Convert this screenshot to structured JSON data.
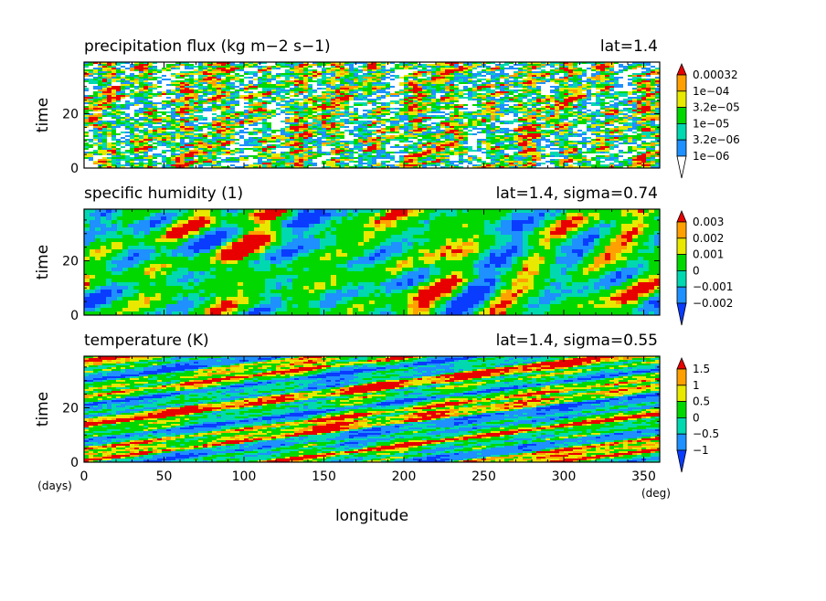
{
  "figure": {
    "xlabel": "longitude",
    "x_unit": "(deg)",
    "y_unit": "(days)"
  },
  "chart_data": [
    {
      "type": "heatmap",
      "title": "precipitation flux (kg m−2 s−1)",
      "annotation": "lat=1.4",
      "xlabel": "longitude",
      "ylabel": "time",
      "xlim": [
        0,
        360
      ],
      "ylim": [
        0,
        39
      ],
      "x_ticks": [
        "0",
        "50",
        "100",
        "150",
        "200",
        "250",
        "300",
        "350"
      ],
      "y_ticks": [
        "0",
        "20"
      ],
      "y_tick_values": [
        0,
        20
      ],
      "colorbar_labels": [
        "0.00032",
        "1e−04",
        "3.2e−05",
        "1e−05",
        "3.2e−06",
        "1e−06"
      ],
      "colors": [
        "#ffffff",
        "#1e90ff",
        "#00d8b0",
        "#00d800",
        "#e8e800",
        "#ffa000",
        "#e80000"
      ],
      "field": "noisy positive rain rate with weak eastward tilt"
    },
    {
      "type": "heatmap",
      "title": "specific humidity (1)",
      "annotation": "lat=1.4, sigma=0.74",
      "xlabel": "longitude",
      "ylabel": "time",
      "xlim": [
        0,
        360
      ],
      "ylim": [
        0,
        39
      ],
      "x_ticks": [
        "0",
        "50",
        "100",
        "150",
        "200",
        "250",
        "300",
        "350"
      ],
      "y_ticks": [
        "0",
        "20"
      ],
      "y_tick_values": [
        0,
        20
      ],
      "colorbar_labels": [
        "0.003",
        "0.002",
        "0.001",
        "0",
        "−0.001",
        "−0.002"
      ],
      "colors": [
        "#0a3cff",
        "#1e90ff",
        "#00d8b0",
        "#00d800",
        "#e8e800",
        "#ffa000",
        "#e80000"
      ],
      "field": "mostly near-zero anomaly with moist and dry patches"
    },
    {
      "type": "heatmap",
      "title": "temperature (K)",
      "annotation": "lat=1.4, sigma=0.55",
      "xlabel": "longitude",
      "ylabel": "time",
      "xlim": [
        0,
        360
      ],
      "ylim": [
        0,
        39
      ],
      "x_ticks": [
        "0",
        "50",
        "100",
        "150",
        "200",
        "250",
        "300",
        "350"
      ],
      "y_ticks": [
        "0",
        "20"
      ],
      "y_tick_values": [
        0,
        20
      ],
      "colorbar_labels": [
        "1.5",
        "1",
        "0.5",
        "0",
        "−0.5",
        "−1"
      ],
      "colors": [
        "#0a3cff",
        "#1e90ff",
        "#00d8b0",
        "#00d800",
        "#e8e800",
        "#ffa000",
        "#e80000"
      ],
      "field": "eastward propagating warm and cold streaks"
    }
  ]
}
